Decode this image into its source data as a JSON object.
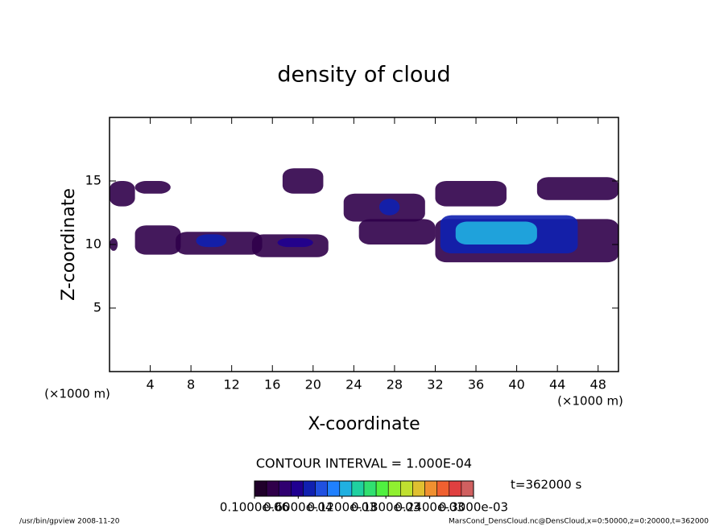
{
  "chart_data": {
    "type": "shaded-contour",
    "title": "density of cloud",
    "x_label": "X-coordinate",
    "y_label": "Z-coordinate",
    "x_unit": "(×1000 m)",
    "y_unit": "(×1000 m)",
    "xlim": [
      0,
      50
    ],
    "ylim": [
      0,
      20
    ],
    "xticks": [
      4,
      8,
      12,
      16,
      20,
      24,
      28,
      32,
      36,
      40,
      44,
      48
    ],
    "yticks": [
      5,
      10,
      15
    ],
    "patches": [
      {
        "x": [
          0,
          2.5
        ],
        "z": [
          13,
          15
        ],
        "level": 2e-05
      },
      {
        "x": [
          2.5,
          6
        ],
        "z": [
          14,
          15
        ],
        "level": 2e-05
      },
      {
        "x": [
          0,
          0.8
        ],
        "z": [
          9.5,
          10.5
        ],
        "level": 2e-05
      },
      {
        "x": [
          2.5,
          7
        ],
        "z": [
          9.2,
          11.5
        ],
        "level": 3e-05
      },
      {
        "x": [
          6.5,
          15
        ],
        "z": [
          9.2,
          11
        ],
        "level": 3e-05
      },
      {
        "x": [
          14,
          21.5
        ],
        "z": [
          9,
          10.8
        ],
        "level": 3e-05
      },
      {
        "x": [
          8.5,
          11.5
        ],
        "z": [
          9.8,
          10.8
        ],
        "level": 7e-05
      },
      {
        "x": [
          16.5,
          20
        ],
        "z": [
          9.8,
          10.5
        ],
        "level": 6e-05
      },
      {
        "x": [
          17,
          21
        ],
        "z": [
          14,
          16
        ],
        "level": 3e-05
      },
      {
        "x": [
          23,
          31
        ],
        "z": [
          11.8,
          14
        ],
        "level": 3e-05
      },
      {
        "x": [
          26.5,
          28.5
        ],
        "z": [
          12.3,
          13.6
        ],
        "level": 7e-05
      },
      {
        "x": [
          24.5,
          32
        ],
        "z": [
          10,
          12
        ],
        "level": 3e-05
      },
      {
        "x": [
          32,
          50
        ],
        "z": [
          8.6,
          12
        ],
        "level": 3e-05
      },
      {
        "x": [
          32.5,
          46
        ],
        "z": [
          9.3,
          12.3
        ],
        "level": 8e-05
      },
      {
        "x": [
          34,
          42
        ],
        "z": [
          10,
          11.8
        ],
        "level": 0.00012
      },
      {
        "x": [
          32,
          39
        ],
        "z": [
          13,
          15
        ],
        "level": 3e-05
      },
      {
        "x": [
          42,
          50
        ],
        "z": [
          13.5,
          15.3
        ],
        "level": 3e-05
      }
    ],
    "colorbar_range": [
      1e-07,
      0.0003
    ],
    "colorbar_colors": [
      "#20002a",
      "#30004a",
      "#300070",
      "#200090",
      "#1020b0",
      "#2050e0",
      "#2080ff",
      "#20b0e0",
      "#20d0a0",
      "#30e070",
      "#50f040",
      "#90f030",
      "#c0e030",
      "#e0c030",
      "#f09030",
      "#f06030",
      "#e04040",
      "#d06060"
    ],
    "colorbar_ticks": [
      {
        "value": 1e-07,
        "label": "0.1000e-06"
      },
      {
        "value": 6e-05,
        "label": "0.6000e-04"
      },
      {
        "value": 0.00012,
        "label": "0.1200e-03"
      },
      {
        "value": 0.00018,
        "label": "0.1800e-03"
      },
      {
        "value": 0.00024,
        "label": "0.2400e-03"
      },
      {
        "value": 0.0003,
        "label": "0.3000e-03"
      }
    ],
    "contour_interval": "CONTOUR INTERVAL = 1.000E-04",
    "time_label": "t=362000 s",
    "footer_left": "/usr/bin/gpview   2008-11-20",
    "footer_right": "MarsCond_DensCloud.nc@DensCloud,x=0:50000,z=0:20000,t=362000"
  }
}
